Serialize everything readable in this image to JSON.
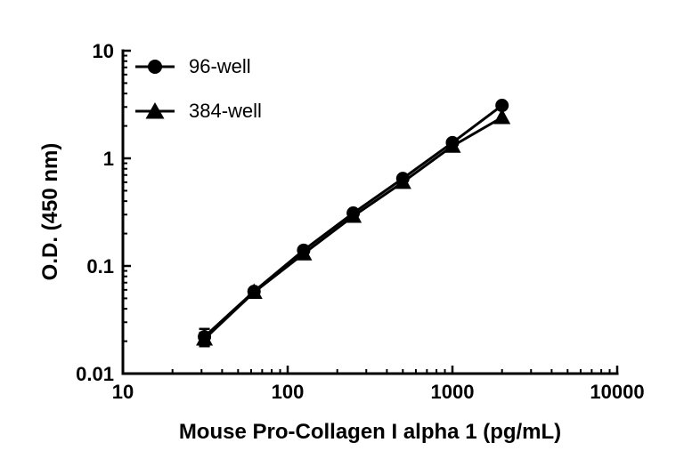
{
  "figure": {
    "background": "#ffffff"
  },
  "chart_data": {
    "type": "line",
    "title": "",
    "xlabel": "Mouse Pro-Collagen I alpha 1 (pg/mL)",
    "ylabel": "O.D. (450 nm)",
    "x_scale": "log",
    "y_scale": "log",
    "x_range": [
      10,
      10000
    ],
    "y_range": [
      0.01,
      10
    ],
    "x_ticks": [
      10,
      100,
      1000,
      10000
    ],
    "x_tick_labels": [
      "10",
      "100",
      "1000",
      "10000"
    ],
    "y_ticks": [
      10,
      1,
      0.1,
      0.01
    ],
    "y_tick_labels": [
      "10",
      "1",
      "0.1",
      "0.01"
    ],
    "x": [
      31.25,
      62.5,
      125,
      250,
      500,
      1000,
      2000
    ],
    "series": [
      {
        "name": "96-well",
        "marker": "circle",
        "color": "#000000",
        "values": [
          0.022,
          0.058,
          0.14,
          0.31,
          0.65,
          1.4,
          3.1
        ],
        "y_err": [
          0.004,
          0,
          0,
          0,
          0,
          0,
          0
        ]
      },
      {
        "name": "384-well",
        "marker": "triangle",
        "color": "#000000",
        "values": [
          0.021,
          0.057,
          0.13,
          0.29,
          0.6,
          1.3,
          2.4
        ],
        "y_err": [
          0.003,
          0,
          0,
          0,
          0,
          0,
          0
        ]
      }
    ],
    "legend_position": "top-left-inside",
    "grid": false,
    "axis_color": "#000000"
  }
}
